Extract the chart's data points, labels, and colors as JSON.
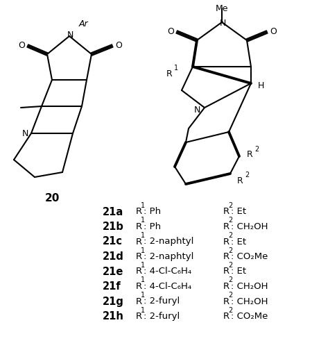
{
  "bg_color": "#ffffff",
  "line_color": "#000000",
  "lw": 1.5,
  "blw": 2.8,
  "font_size_label": 10.5,
  "font_size_text": 9.5,
  "font_size_atom": 9,
  "font_size_small": 7,
  "table_rows": [
    {
      "label": "21a",
      "r1_text": ": Ph",
      "r2_text": ": Et"
    },
    {
      "label": "21b",
      "r1_text": ": Ph",
      "r2_text": ": CH₂OH"
    },
    {
      "label": "21c",
      "r1_text": ": 2-naphtyl",
      "r2_text": ": Et"
    },
    {
      "label": "21d",
      "r1_text": ": 2-naphtyl",
      "r2_text": ": CO₂Me"
    },
    {
      "label": "21e",
      "r1_text": ": 4-Cl-C₆H₄",
      "r2_text": ": Et"
    },
    {
      "label": "21f",
      "r1_text": ": 4-Cl-C₆H₄",
      "r2_text": ": CH₂OH"
    },
    {
      "label": "21g",
      "r1_text": ": 2-furyl",
      "r2_text": ": CH₂OH"
    },
    {
      "label": "21h",
      "r1_text": ": 2-furyl",
      "r2_text": ": CO₂Me"
    }
  ]
}
